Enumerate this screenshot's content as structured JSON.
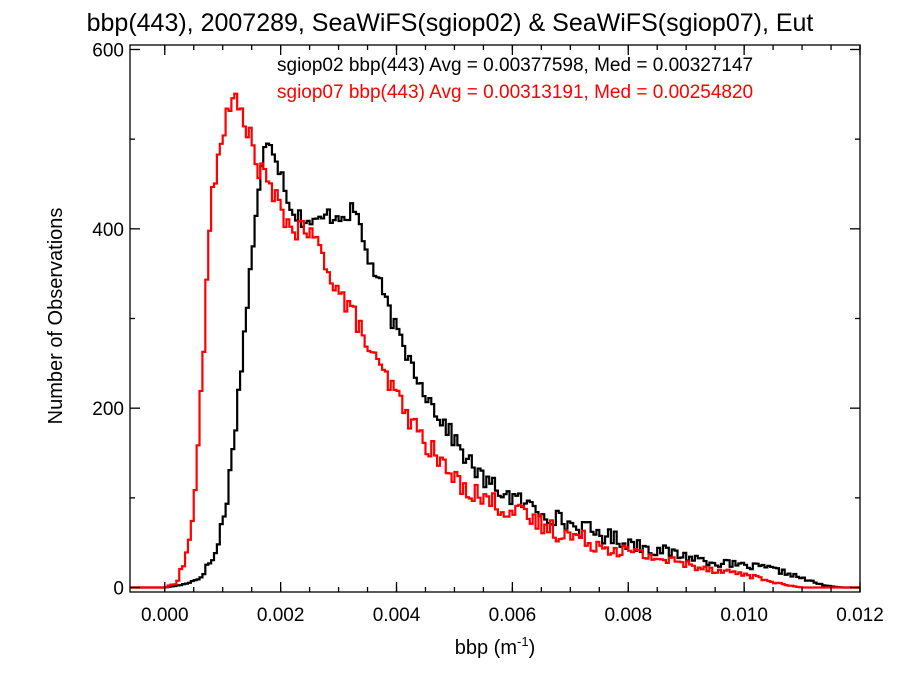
{
  "chart_data": {
    "type": "histogram",
    "title": "bbp(443), 2007289, SeaWiFS(sgiop02) & SeaWiFS(sgiop07), Eut",
    "xlabel": "bbp (m",
    "xlabel_sup": "-1",
    "xlabel_close": ")",
    "ylabel": "Number of Observations",
    "xlim": [
      -0.0006,
      0.012
    ],
    "ylim": [
      -5,
      605
    ],
    "bin_width": 5e-05,
    "x_ticks": [
      0.0,
      0.002,
      0.004,
      0.006,
      0.008,
      0.01,
      0.012
    ],
    "x_tick_labels": [
      "0.000",
      "0.002",
      "0.004",
      "0.006",
      "0.008",
      "0.010",
      "0.012"
    ],
    "y_ticks": [
      0,
      200,
      400,
      600
    ],
    "y_tick_labels": [
      "0",
      "200",
      "400",
      "600"
    ],
    "legend_placement": "top-right",
    "series": [
      {
        "name": "sgiop02",
        "color": "#000000",
        "legend_text": "sgiop02 bbp(443) Avg = 0.00377598, Med = 0.00327147",
        "anchors": [
          [
            0.0,
            0
          ],
          [
            0.0003,
            3
          ],
          [
            0.0006,
            10
          ],
          [
            0.0009,
            40
          ],
          [
            0.0011,
            110
          ],
          [
            0.0013,
            230
          ],
          [
            0.0015,
            370
          ],
          [
            0.0017,
            480
          ],
          [
            0.0018,
            505
          ],
          [
            0.002,
            465
          ],
          [
            0.0022,
            420
          ],
          [
            0.0024,
            410
          ],
          [
            0.0026,
            405
          ],
          [
            0.0028,
            415
          ],
          [
            0.003,
            415
          ],
          [
            0.0033,
            420
          ],
          [
            0.0035,
            370
          ],
          [
            0.0037,
            340
          ],
          [
            0.004,
            285
          ],
          [
            0.0043,
            245
          ],
          [
            0.0046,
            205
          ],
          [
            0.0049,
            175
          ],
          [
            0.0052,
            145
          ],
          [
            0.0055,
            120
          ],
          [
            0.006,
            100
          ],
          [
            0.0065,
            85
          ],
          [
            0.007,
            70
          ],
          [
            0.0075,
            60
          ],
          [
            0.008,
            50
          ],
          [
            0.0085,
            42
          ],
          [
            0.009,
            35
          ],
          [
            0.0095,
            28
          ],
          [
            0.01,
            24
          ],
          [
            0.0104,
            22
          ],
          [
            0.0108,
            15
          ],
          [
            0.0111,
            8
          ],
          [
            0.0114,
            2
          ],
          [
            0.0117,
            0
          ]
        ],
        "jitter": 10
      },
      {
        "name": "sgiop07",
        "color": "#ff0000",
        "legend_text": "sgiop07 bbp(443) Avg = 0.00313191, Med = 0.00254820",
        "anchors": [
          [
            0.0,
            0
          ],
          [
            0.0002,
            5
          ],
          [
            0.0004,
            40
          ],
          [
            0.0005,
            90
          ],
          [
            0.0006,
            180
          ],
          [
            0.0007,
            300
          ],
          [
            0.0008,
            430
          ],
          [
            0.001,
            510
          ],
          [
            0.0012,
            545
          ],
          [
            0.0014,
            520
          ],
          [
            0.0016,
            470
          ],
          [
            0.0018,
            450
          ],
          [
            0.002,
            420
          ],
          [
            0.0022,
            400
          ],
          [
            0.0025,
            395
          ],
          [
            0.0027,
            375
          ],
          [
            0.003,
            330
          ],
          [
            0.0033,
            300
          ],
          [
            0.0036,
            255
          ],
          [
            0.004,
            215
          ],
          [
            0.0043,
            180
          ],
          [
            0.0047,
            145
          ],
          [
            0.005,
            120
          ],
          [
            0.0055,
            100
          ],
          [
            0.006,
            85
          ],
          [
            0.0065,
            70
          ],
          [
            0.007,
            58
          ],
          [
            0.0075,
            48
          ],
          [
            0.008,
            40
          ],
          [
            0.0085,
            33
          ],
          [
            0.009,
            26
          ],
          [
            0.0095,
            20
          ],
          [
            0.01,
            15
          ],
          [
            0.0104,
            8
          ],
          [
            0.0107,
            3
          ],
          [
            0.011,
            0
          ]
        ],
        "jitter": 12
      }
    ]
  }
}
